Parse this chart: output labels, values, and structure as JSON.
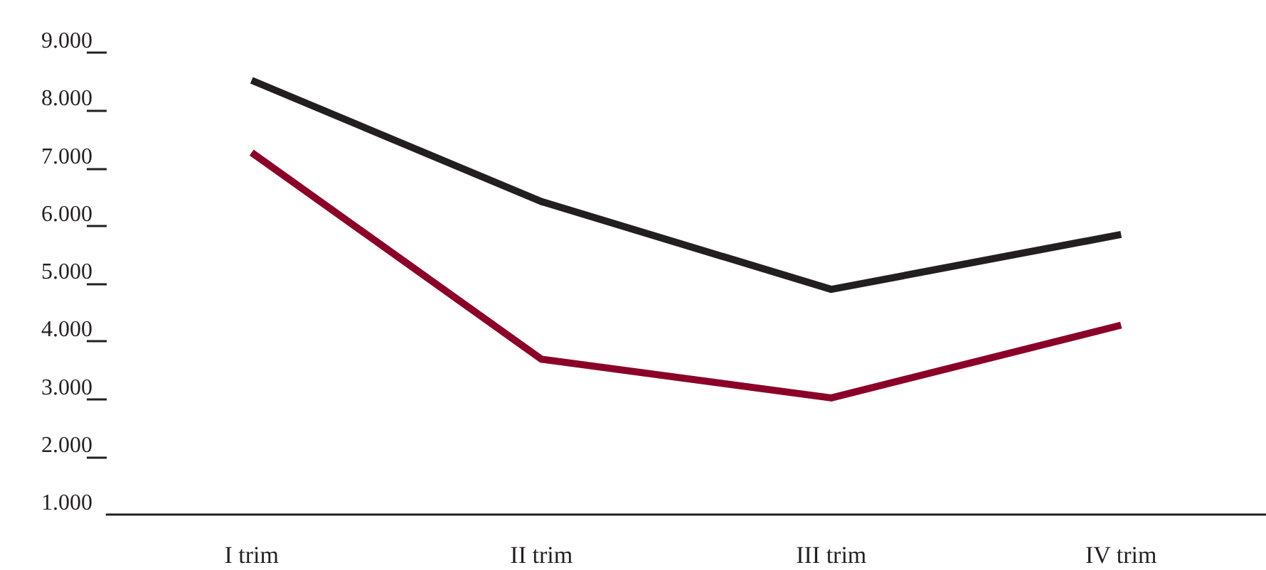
{
  "chart_data": {
    "type": "line",
    "categories": [
      "I trim",
      "II trim",
      "III trim",
      "IV trim"
    ],
    "series": [
      {
        "color": "#231f20",
        "values": [
          8520,
          6420,
          4900,
          5850
        ]
      },
      {
        "color": "#8b0028",
        "values": [
          7270,
          3690,
          3020,
          4280
        ]
      }
    ],
    "ylim": [
      1000,
      9000
    ],
    "yticks": [
      {
        "value": 1000,
        "label": "1.000"
      },
      {
        "value": 2000,
        "label": "2.000"
      },
      {
        "value": 3000,
        "label": "3.000"
      },
      {
        "value": 4000,
        "label": "4.000"
      },
      {
        "value": 5000,
        "label": "5.000"
      },
      {
        "value": 6000,
        "label": "6.000"
      },
      {
        "value": 7000,
        "label": "7.000"
      },
      {
        "value": 8000,
        "label": "8.000"
      },
      {
        "value": 9000,
        "label": "9.000"
      }
    ],
    "grid": false,
    "marker": "none",
    "line_style": "solid"
  }
}
